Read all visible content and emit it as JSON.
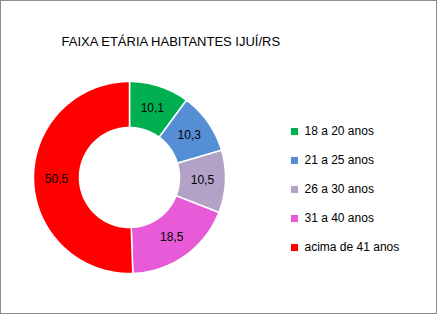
{
  "chart_data": {
    "type": "donut",
    "title": "FAIXA ETÁRIA HABITANTES IJUÍ/RS",
    "categories": [
      "18 a 20 anos",
      "21 a 25 anos",
      "26 a 30 anos",
      "31 a 40 anos",
      "acima de 41 anos"
    ],
    "values": [
      10.1,
      10.3,
      10.5,
      18.5,
      50.5
    ],
    "value_labels": [
      "10,1",
      "10,3",
      "10,5",
      "18,5",
      "50,5"
    ],
    "colors": [
      "#00b050",
      "#558ed5",
      "#b3a2c7",
      "#e85ad8",
      "#ff0000"
    ],
    "data_labels": true,
    "legend": "right"
  }
}
